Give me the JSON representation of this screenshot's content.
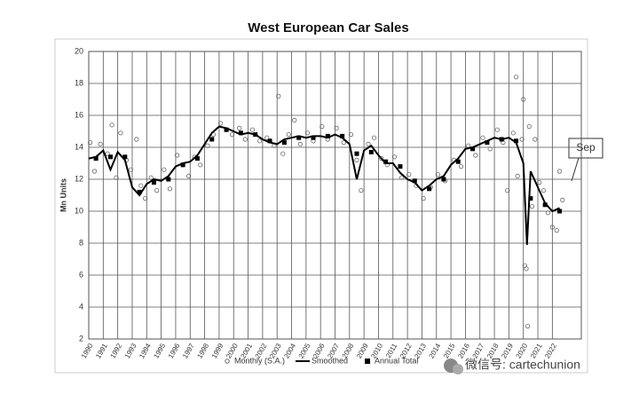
{
  "chart_data": {
    "type": "line",
    "title": "West European Car Sales",
    "y_label": "Mn Units",
    "xlim": [
      1990,
      2024
    ],
    "xticks": [
      1990,
      1991,
      1992,
      1993,
      1994,
      1995,
      1996,
      1997,
      1998,
      1999,
      2000,
      2001,
      2002,
      2003,
      2004,
      2005,
      2006,
      2007,
      2008,
      2009,
      2010,
      2011,
      2012,
      2013,
      2014,
      2015,
      2016,
      2017,
      2018,
      2019,
      2020,
      2021,
      2022
    ],
    "ylim": [
      2,
      20
    ],
    "yticks": [
      2,
      4,
      6,
      8,
      10,
      12,
      14,
      16,
      18,
      20
    ],
    "grid": true,
    "series": [
      {
        "name": "Monthly (S.A.)",
        "mark": "circle",
        "color": "#666666",
        "x": [
          1990.1,
          1990.4,
          1990.8,
          1991.3,
          1991.6,
          1991.9,
          1992.2,
          1992.6,
          1992.9,
          1993.3,
          1993.6,
          1993.9,
          1994.3,
          1994.7,
          1995.2,
          1995.6,
          1996.1,
          1996.5,
          1996.9,
          1997.3,
          1997.7,
          1998.2,
          1998.6,
          1999.1,
          1999.5,
          1999.9,
          2000.4,
          2000.8,
          2001.3,
          2001.8,
          2002.3,
          2002.8,
          2003.1,
          2003.4,
          2003.8,
          2004.2,
          2004.6,
          2005.1,
          2005.5,
          2006.1,
          2006.5,
          2007.1,
          2007.6,
          2008.1,
          2008.5,
          2008.8,
          2009.3,
          2009.7,
          2010.2,
          2010.6,
          2011.1,
          2011.6,
          2012.1,
          2012.6,
          2013.1,
          2013.6,
          2014.1,
          2014.6,
          2015.2,
          2015.7,
          2016.2,
          2016.7,
          2017.2,
          2017.7,
          2018.2,
          2018.6,
          2018.9,
          2019.3,
          2019.5,
          2019.6,
          2019.9,
          2020.0,
          2020.1,
          2020.2,
          2020.3,
          2020.4,
          2020.6,
          2020.8,
          2021.1,
          2021.4,
          2021.7,
          2022.0,
          2022.3,
          2022.5,
          2022.7
        ],
        "values": [
          14.3,
          12.5,
          14.2,
          13.6,
          15.4,
          12.1,
          14.9,
          13.2,
          12.6,
          14.5,
          11.6,
          10.8,
          12.1,
          11.3,
          12.6,
          11.4,
          13.5,
          12.9,
          12.2,
          13.4,
          12.9,
          14.1,
          14.8,
          15.5,
          15.1,
          14.8,
          15.2,
          14.5,
          15.1,
          14.4,
          14.6,
          14.1,
          17.2,
          13.6,
          14.8,
          15.7,
          14.2,
          14.9,
          14.4,
          15.3,
          14.5,
          15.2,
          14.3,
          14.8,
          13.2,
          11.3,
          14.2,
          14.6,
          13.3,
          12.9,
          13.4,
          12.1,
          12.3,
          11.6,
          10.8,
          11.5,
          12.3,
          11.9,
          13.2,
          12.8,
          14.1,
          13.5,
          14.6,
          13.9,
          15.1,
          14.3,
          11.3,
          14.9,
          18.4,
          12.2,
          14.5,
          17.0,
          6.6,
          6.4,
          2.8,
          15.3,
          10.3,
          14.5,
          11.8,
          11.3,
          9.9,
          9.0,
          8.8,
          12.5,
          10.7
        ]
      },
      {
        "name": "Smoothed",
        "mark": "line",
        "color": "#000000",
        "x": [
          1990,
          1990.5,
          1991,
          1991.5,
          1992,
          1992.5,
          1993,
          1993.5,
          1994,
          1994.5,
          1995,
          1995.5,
          1996,
          1996.5,
          1997,
          1997.5,
          1998,
          1998.5,
          1999,
          1999.5,
          2000,
          2000.5,
          2001,
          2001.5,
          2002,
          2002.5,
          2003,
          2003.5,
          2004,
          2004.5,
          2005,
          2005.5,
          2006,
          2006.5,
          2007,
          2007.5,
          2008,
          2008.5,
          2009,
          2009.5,
          2010,
          2010.5,
          2011,
          2011.5,
          2012,
          2012.5,
          2013,
          2013.5,
          2014,
          2014.5,
          2015,
          2015.5,
          2016,
          2016.5,
          2017,
          2017.5,
          2018,
          2018.5,
          2019,
          2019.5,
          2020,
          2020.25,
          2020.5,
          2021,
          2021.5,
          2022,
          2022.5
        ],
        "values": [
          13.3,
          13.4,
          13.8,
          12.6,
          13.7,
          13.2,
          11.5,
          11.0,
          11.7,
          12.0,
          11.9,
          12.2,
          12.8,
          13.0,
          13.1,
          13.5,
          14.2,
          14.9,
          15.3,
          15.2,
          15.0,
          14.8,
          14.9,
          14.8,
          14.5,
          14.3,
          14.2,
          14.5,
          14.6,
          14.7,
          14.6,
          14.7,
          14.7,
          14.6,
          14.8,
          14.6,
          14.2,
          12.0,
          13.8,
          14.1,
          13.5,
          13.0,
          13.0,
          12.4,
          12.0,
          11.8,
          11.3,
          11.6,
          12.0,
          12.2,
          12.9,
          13.3,
          13.9,
          14.0,
          14.2,
          14.4,
          14.6,
          14.5,
          14.6,
          14.3,
          13.0,
          7.9,
          12.5,
          11.5,
          10.5,
          10.0,
          10.2
        ]
      },
      {
        "name": "Annual Total",
        "mark": "square",
        "color": "#000000",
        "x": [
          1990.5,
          1991.5,
          1992.5,
          1993.5,
          1994.5,
          1995.5,
          1996.5,
          1997.5,
          1998.5,
          1999.5,
          2000.5,
          2001.5,
          2002.5,
          2003.5,
          2004.5,
          2005.5,
          2006.5,
          2007.5,
          2008.5,
          2009.5,
          2010.5,
          2011.5,
          2012.5,
          2013.5,
          2014.5,
          2015.5,
          2016.5,
          2017.5,
          2018.5,
          2019.5,
          2020.5,
          2021.5,
          2022.5
        ],
        "values": [
          13.3,
          13.4,
          13.4,
          11.2,
          11.8,
          12.0,
          12.9,
          13.3,
          14.5,
          15.1,
          14.9,
          14.8,
          14.4,
          14.3,
          14.6,
          14.6,
          14.7,
          14.7,
          13.6,
          13.7,
          13.1,
          12.8,
          11.9,
          11.4,
          12.0,
          13.1,
          13.9,
          14.3,
          14.5,
          14.4,
          10.8,
          10.4,
          10.0
        ]
      }
    ],
    "annotations": [
      "Sep"
    ],
    "watermark": "微信号: cartechunion"
  }
}
